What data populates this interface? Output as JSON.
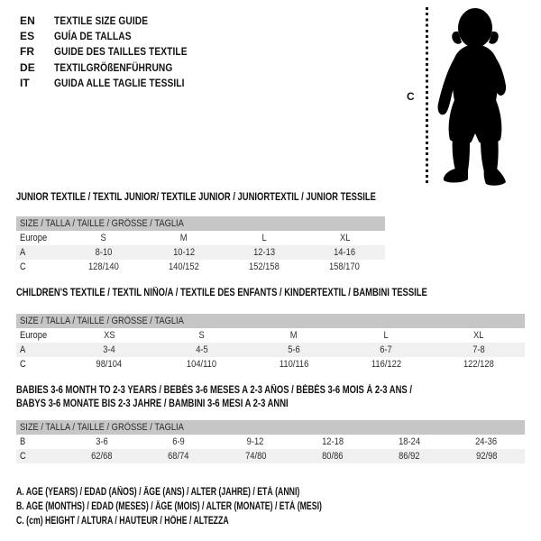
{
  "colors": {
    "header_bar": "#c6c6c6",
    "stripe": "#f0f0f0",
    "ink": "#111111"
  },
  "languages": [
    {
      "code": "EN",
      "label": "TEXTILE SIZE GUIDE"
    },
    {
      "code": "ES",
      "label": "GUÍA DE TALLAS"
    },
    {
      "code": "FR",
      "label": "GUIDE DES TAILLES TEXTILE"
    },
    {
      "code": "DE",
      "label": "TEXTILGRÖßENFÜHRUNG"
    },
    {
      "code": "IT",
      "label": "GUIDA ALLE TAGLIE TESSILI"
    }
  ],
  "figure": {
    "height_label": "C"
  },
  "tables": [
    {
      "title_lines": [
        "JUNIOR TEXTILE / TEXTIL JUNIOR/ TEXTILE JUNIOR / JUNIORTEXTIL / JUNIOR TESSILE"
      ],
      "size_header": "SIZE / TALLA / TAILLE / GRÖSSE / TAGLIA",
      "rows": [
        {
          "label": "Europe",
          "cells": [
            "S",
            "M",
            "L",
            "XL"
          ],
          "striped": false
        },
        {
          "label": "A",
          "cells": [
            "8-10",
            "10-12",
            "12-13",
            "14-16"
          ],
          "striped": true
        },
        {
          "label": "C",
          "cells": [
            "128/140",
            "140/152",
            "152/158",
            "158/170"
          ],
          "striped": false
        }
      ]
    },
    {
      "title_lines": [
        "CHILDREN'S TEXTILE / TEXTIL NIÑO/A / TEXTILE DES ENFANTS / KINDERTEXTIL / BAMBINI TESSILE"
      ],
      "size_header": "SIZE / TALLA / TAILLE / GRÖSSE / TAGLIA",
      "rows": [
        {
          "label": "Europe",
          "cells": [
            "XS",
            "S",
            "M",
            "L",
            "XL"
          ],
          "striped": false
        },
        {
          "label": "A",
          "cells": [
            "3-4",
            "4-5",
            "5-6",
            "6-7",
            "7-8"
          ],
          "striped": true
        },
        {
          "label": "C",
          "cells": [
            "98/104",
            "104/110",
            "110/116",
            "116/122",
            "122/128"
          ],
          "striped": false
        }
      ]
    },
    {
      "title_lines": [
        "BABIES 3-6 MONTH TO 2-3 YEARS / BEBÉS 3-6 MESES A 2-3 AÑOS / BÉBÉS 3-6 MOIS À 2-3 ANS /",
        "BABYS 3-6 MONATE BIS 2-3 JAHRE / BAMBINI 3-6 MESI A 2-3 ANNI"
      ],
      "size_header": "SIZE / TALLA / TAILLE / GRÖSSE / TAGLIA",
      "rows": [
        {
          "label": "B",
          "cells": [
            "3-6",
            "6-9",
            "9-12",
            "12-18",
            "18-24",
            "24-36"
          ],
          "striped": false
        },
        {
          "label": "C",
          "cells": [
            "62/68",
            "68/74",
            "74/80",
            "80/86",
            "86/92",
            "92/98"
          ],
          "striped": true
        }
      ]
    }
  ],
  "legend": [
    "A. AGE (YEARS) / EDAD (AÑOS) / ÂGE (ANS) / ALTER (JAHRE) / ETÀ (ANNI)",
    "B. AGE (MONTHS) / EDAD (MESES) / ÂGE (MOIS) / ALTER (MONATE) / ETÀ (MESI)",
    "C. (cm) HEIGHT / ALTURA / HAUTEUR / HÖHE / ALTEZZA"
  ]
}
